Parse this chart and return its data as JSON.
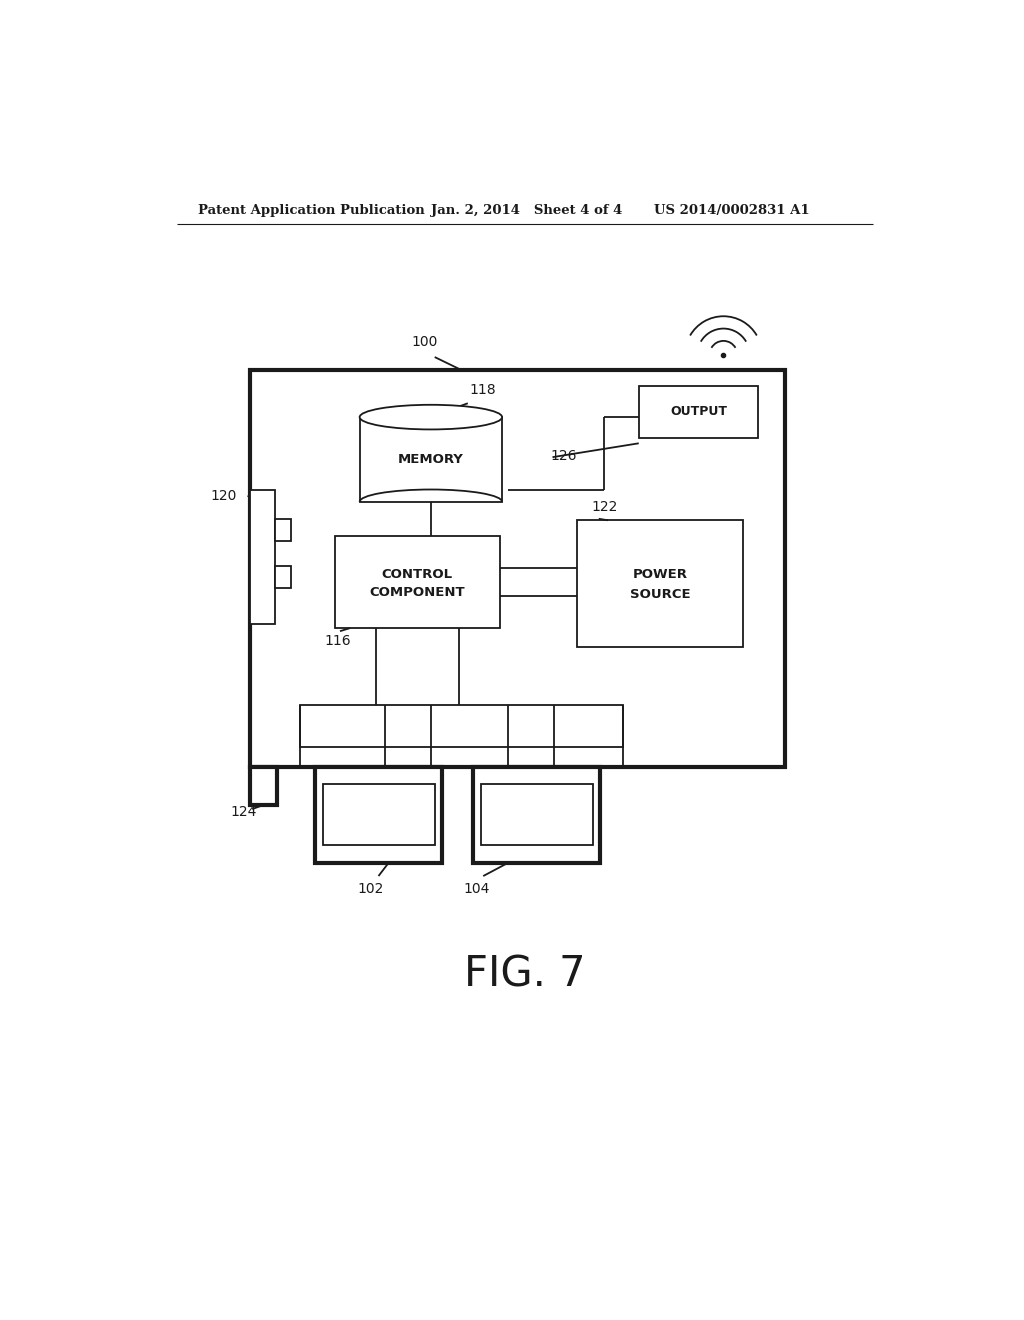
{
  "header_left": "Patent Application Publication",
  "header_mid": "Jan. 2, 2014   Sheet 4 of 4",
  "header_right": "US 2014/0002831 A1",
  "fig_label": "FIG. 7",
  "background_color": "#ffffff",
  "line_color": "#1a1a1a",
  "thin_lw": 1.3,
  "thick_lw": 3.0
}
